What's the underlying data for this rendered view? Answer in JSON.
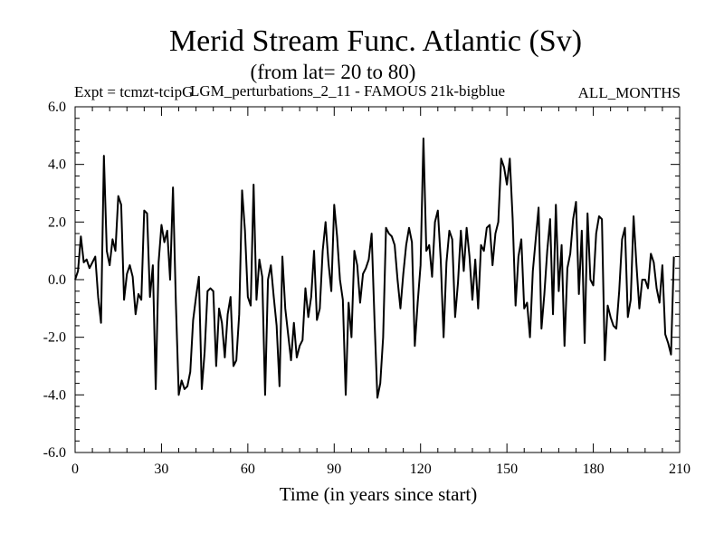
{
  "chart_data": {
    "type": "line",
    "title": "Merid Stream Func. Atlantic (Sv)",
    "subtitle": "(from lat= 20 to 80)",
    "annotation_left": "Expt = tcmzt-tcipG",
    "annotation_center": "LGM_perturbations_2_11 - FAMOUS 21k-bigblue",
    "annotation_right": "ALL_MONTHS",
    "xlabel": "Time (in years since start)",
    "ylabel": "",
    "xlim": [
      0,
      210
    ],
    "ylim": [
      -6.0,
      6.0
    ],
    "x_ticks": [
      0,
      30,
      60,
      90,
      120,
      150,
      180,
      210
    ],
    "x_tick_labels": [
      "0",
      "30",
      "60",
      "90",
      "120",
      "150",
      "180",
      "210"
    ],
    "y_ticks": [
      -6.0,
      -4.0,
      -2.0,
      0.0,
      2.0,
      4.0,
      6.0
    ],
    "y_tick_labels": [
      "-6.0",
      "-4.0",
      "-2.0",
      "0.0",
      "2.0",
      "4.0",
      "6.0"
    ],
    "series": [
      {
        "name": "Merid Stream Func. Atlantic",
        "color": "#000000",
        "x_start": 0,
        "x_step": 1,
        "values": [
          0.0,
          0.3,
          1.5,
          0.6,
          0.7,
          0.4,
          0.6,
          0.8,
          -0.6,
          -1.5,
          4.3,
          1.0,
          0.5,
          1.4,
          1.0,
          2.9,
          2.6,
          -0.7,
          0.2,
          0.5,
          0.1,
          -1.2,
          -0.5,
          -0.7,
          2.4,
          2.3,
          -0.6,
          0.5,
          -3.8,
          0.6,
          1.9,
          1.3,
          1.7,
          0.0,
          3.2,
          -0.8,
          -4.0,
          -3.5,
          -3.8,
          -3.7,
          -3.2,
          -1.4,
          -0.6,
          0.1,
          -3.8,
          -2.5,
          -0.4,
          -0.3,
          -0.4,
          -3.0,
          -1.0,
          -1.5,
          -2.7,
          -1.2,
          -0.6,
          -3.0,
          -2.8,
          -1.2,
          3.1,
          1.7,
          -0.6,
          -0.9,
          3.3,
          -0.7,
          0.7,
          0.1,
          -4.0,
          0.0,
          0.5,
          -0.6,
          -1.6,
          -3.7,
          0.8,
          -1.0,
          -1.9,
          -2.8,
          -1.5,
          -2.7,
          -2.3,
          -2.1,
          -0.3,
          -1.3,
          -0.6,
          1.0,
          -1.4,
          -1.0,
          1.0,
          2.0,
          0.6,
          -0.4,
          2.6,
          1.5,
          0.0,
          -0.7,
          -4.0,
          -0.8,
          -2.0,
          1.0,
          0.5,
          -0.8,
          0.2,
          0.4,
          0.7,
          1.6,
          -1.4,
          -4.1,
          -3.6,
          -2.0,
          1.8,
          1.6,
          1.5,
          1.2,
          0.0,
          -1.0,
          0.2,
          1.2,
          1.8,
          1.3,
          -2.3,
          -0.8,
          0.5,
          4.9,
          1.0,
          1.2,
          0.1,
          2.0,
          2.4,
          0.7,
          -2.0,
          0.6,
          1.7,
          1.4,
          -1.3,
          -0.1,
          1.7,
          0.3,
          1.8,
          0.8,
          -0.7,
          0.7,
          -1.0,
          1.2,
          1.0,
          1.8,
          1.9,
          0.5,
          1.6,
          2.0,
          4.2,
          3.9,
          3.3,
          4.2,
          2.1,
          -0.9,
          0.8,
          1.4,
          -1.0,
          -0.8,
          -2.0,
          0.3,
          1.4,
          2.5,
          -1.7,
          -0.5,
          1.0,
          2.1,
          -1.2,
          2.6,
          -0.4,
          1.2,
          -2.3,
          0.4,
          0.9,
          2.1,
          2.7,
          -0.5,
          1.7,
          -2.2,
          2.3,
          0.0,
          -0.2,
          1.6,
          2.2,
          2.1,
          -2.8,
          -0.9,
          -1.3,
          -1.6,
          -1.7,
          -0.4,
          1.4,
          1.8,
          -1.3,
          -0.7,
          2.2,
          0.5,
          -1.0,
          0.0,
          0.0,
          -0.3,
          0.9,
          0.6,
          -0.3,
          -0.8,
          0.5,
          -1.9,
          -2.2,
          -2.6,
          0.8
        ]
      }
    ],
    "grid": false,
    "minor_ticks": true
  }
}
